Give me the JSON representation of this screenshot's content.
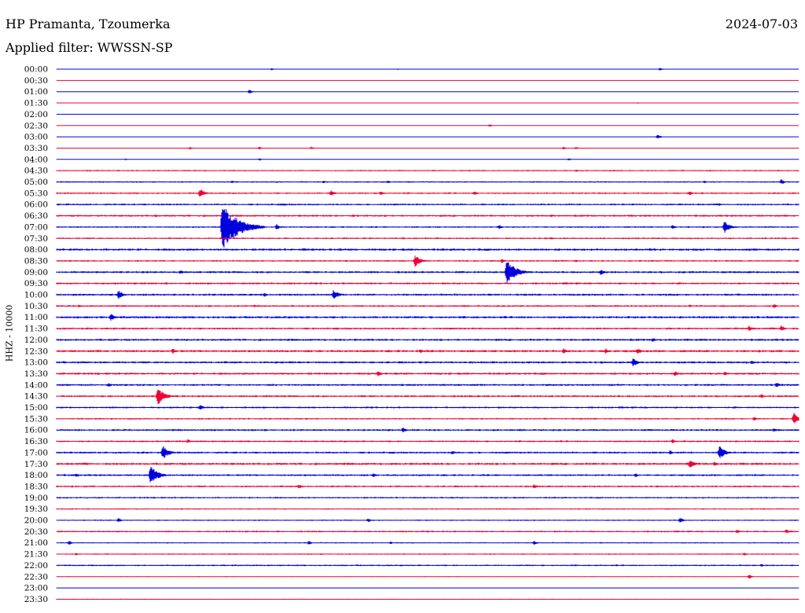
{
  "header": {
    "station": "HP Pramanta, Tzoumerka",
    "date": "2024-07-03",
    "filter": "Applied filter: WWSSN-SP"
  },
  "colors": {
    "odd_row": "#0000dd",
    "even_row": "#ee0033"
  },
  "chart_data": {
    "type": "line",
    "subtype": "helicorder",
    "ylabel": "HHZ - 10000",
    "row_interval_minutes": 30,
    "x_minutes_per_row": 30,
    "rows": [
      "00:00",
      "00:30",
      "01:00",
      "01:30",
      "02:00",
      "02:30",
      "03:00",
      "03:30",
      "04:00",
      "04:30",
      "05:00",
      "05:30",
      "06:00",
      "06:30",
      "07:00",
      "07:30",
      "08:00",
      "08:30",
      "09:00",
      "09:30",
      "10:00",
      "10:30",
      "11:00",
      "11:30",
      "12:00",
      "12:30",
      "13:00",
      "13:30",
      "14:00",
      "14:30",
      "15:00",
      "15:30",
      "16:00",
      "16:30",
      "17:00",
      "17:30",
      "18:00",
      "18:30",
      "19:00",
      "19:30",
      "20:00",
      "20:30",
      "21:00",
      "21:30",
      "22:00",
      "22:30",
      "23:00",
      "23:30"
    ],
    "noise_level": [
      0.2,
      0.1,
      0.2,
      0.1,
      0.1,
      0.1,
      0.2,
      0.4,
      0.4,
      0.9,
      0.9,
      1.0,
      1.1,
      1.2,
      1.0,
      1.0,
      1.4,
      1.0,
      1.3,
      1.2,
      1.3,
      1.1,
      1.4,
      1.2,
      1.3,
      1.4,
      1.3,
      1.3,
      1.2,
      1.2,
      1.1,
      1.0,
      1.2,
      1.1,
      1.2,
      1.4,
      1.2,
      1.1,
      1.0,
      0.8,
      0.8,
      1.0,
      0.8,
      0.8,
      1.0,
      0.6,
      0.4,
      0.6
    ],
    "events": [
      {
        "row": "00:00",
        "minute": 8.7,
        "amp": 1.5
      },
      {
        "row": "00:00",
        "minute": 13.8,
        "amp": 1
      },
      {
        "row": "00:00",
        "minute": 24.4,
        "amp": 2
      },
      {
        "row": "01:00",
        "minute": 7.8,
        "amp": 3
      },
      {
        "row": "01:30",
        "minute": 23.5,
        "amp": 1
      },
      {
        "row": "02:30",
        "minute": 17.5,
        "amp": 2
      },
      {
        "row": "03:00",
        "minute": 24.3,
        "amp": 3
      },
      {
        "row": "03:30",
        "minute": 5.4,
        "amp": 2
      },
      {
        "row": "03:30",
        "minute": 8.2,
        "amp": 2
      },
      {
        "row": "03:30",
        "minute": 10.3,
        "amp": 2
      },
      {
        "row": "03:30",
        "minute": 20.5,
        "amp": 2
      },
      {
        "row": "03:30",
        "minute": 21.0,
        "amp": 2
      },
      {
        "row": "04:00",
        "minute": 2.8,
        "amp": 1.5
      },
      {
        "row": "04:00",
        "minute": 8.2,
        "amp": 1.5
      },
      {
        "row": "04:00",
        "minute": 20.7,
        "amp": 2
      },
      {
        "row": "04:30",
        "minute": 21.0,
        "amp": 2
      },
      {
        "row": "05:00",
        "minute": 7.1,
        "amp": 2
      },
      {
        "row": "05:00",
        "minute": 10.8,
        "amp": 2
      },
      {
        "row": "05:00",
        "minute": 13.4,
        "amp": 2
      },
      {
        "row": "05:00",
        "minute": 26.2,
        "amp": 2
      },
      {
        "row": "05:00",
        "minute": 29.3,
        "amp": 4
      },
      {
        "row": "05:30",
        "minute": 5.8,
        "amp": 6
      },
      {
        "row": "05:30",
        "minute": 11.1,
        "amp": 4
      },
      {
        "row": "05:30",
        "minute": 13.1,
        "amp": 3
      },
      {
        "row": "05:30",
        "minute": 16.9,
        "amp": 3
      },
      {
        "row": "05:30",
        "minute": 25.6,
        "amp": 3
      },
      {
        "row": "06:00",
        "minute": 9.2,
        "amp": 2
      },
      {
        "row": "06:00",
        "minute": 26.8,
        "amp": 2
      },
      {
        "row": "06:30",
        "minute": 4.0,
        "amp": 2
      },
      {
        "row": "06:30",
        "minute": 12.0,
        "amp": 2
      },
      {
        "row": "06:30",
        "minute": 20.0,
        "amp": 2
      },
      {
        "row": "07:00",
        "minute": 6.7,
        "amp": 30
      },
      {
        "row": "07:00",
        "minute": 8.9,
        "amp": 4
      },
      {
        "row": "07:00",
        "minute": 17.9,
        "amp": 3
      },
      {
        "row": "07:00",
        "minute": 24.9,
        "amp": 3
      },
      {
        "row": "07:00",
        "minute": 27.0,
        "amp": 8
      },
      {
        "row": "07:30",
        "minute": 14.0,
        "amp": 2
      },
      {
        "row": "07:30",
        "minute": 20.0,
        "amp": 2
      },
      {
        "row": "08:00",
        "minute": 10.0,
        "amp": 2
      },
      {
        "row": "08:00",
        "minute": 24.0,
        "amp": 2
      },
      {
        "row": "08:30",
        "minute": 14.5,
        "amp": 8
      },
      {
        "row": "08:30",
        "minute": 18.0,
        "amp": 3
      },
      {
        "row": "08:30",
        "minute": 21.0,
        "amp": 2
      },
      {
        "row": "09:00",
        "minute": 18.2,
        "amp": 16
      },
      {
        "row": "09:00",
        "minute": 5.0,
        "amp": 3
      },
      {
        "row": "09:00",
        "minute": 22.0,
        "amp": 4
      },
      {
        "row": "10:00",
        "minute": 2.5,
        "amp": 6
      },
      {
        "row": "10:00",
        "minute": 8.4,
        "amp": 3
      },
      {
        "row": "10:00",
        "minute": 11.2,
        "amp": 7
      },
      {
        "row": "10:30",
        "minute": 0.9,
        "amp": 2
      },
      {
        "row": "10:30",
        "minute": 8.0,
        "amp": 2
      },
      {
        "row": "10:30",
        "minute": 25.6,
        "amp": 2
      },
      {
        "row": "10:30",
        "minute": 29.0,
        "amp": 3
      },
      {
        "row": "11:00",
        "minute": 2.2,
        "amp": 5
      },
      {
        "row": "11:30",
        "minute": 28.0,
        "amp": 4
      },
      {
        "row": "11:30",
        "minute": 29.3,
        "amp": 4
      },
      {
        "row": "12:00",
        "minute": 24.1,
        "amp": 3
      },
      {
        "row": "12:30",
        "minute": 4.7,
        "amp": 4
      },
      {
        "row": "12:30",
        "minute": 14.7,
        "amp": 3
      },
      {
        "row": "12:30",
        "minute": 20.5,
        "amp": 4
      },
      {
        "row": "12:30",
        "minute": 22.2,
        "amp": 4
      },
      {
        "row": "12:30",
        "minute": 23.5,
        "amp": 4
      },
      {
        "row": "13:00",
        "minute": 0.3,
        "amp": 2
      },
      {
        "row": "13:00",
        "minute": 23.3,
        "amp": 6
      },
      {
        "row": "13:00",
        "minute": 28.1,
        "amp": 3
      },
      {
        "row": "13:30",
        "minute": 13.0,
        "amp": 4
      },
      {
        "row": "13:30",
        "minute": 25.0,
        "amp": 4
      },
      {
        "row": "13:30",
        "minute": 27.0,
        "amp": 3
      },
      {
        "row": "14:00",
        "minute": 2.1,
        "amp": 3
      },
      {
        "row": "14:00",
        "minute": 29.1,
        "amp": 4
      },
      {
        "row": "14:30",
        "minute": 4.1,
        "amp": 11
      },
      {
        "row": "14:30",
        "minute": 28.5,
        "amp": 3
      },
      {
        "row": "15:00",
        "minute": 5.8,
        "amp": 4
      },
      {
        "row": "15:30",
        "minute": 28.2,
        "amp": 3
      },
      {
        "row": "15:30",
        "minute": 29.8,
        "amp": 8
      },
      {
        "row": "16:00",
        "minute": 14.0,
        "amp": 4
      },
      {
        "row": "16:00",
        "minute": 29.0,
        "amp": 3
      },
      {
        "row": "16:30",
        "minute": 5.3,
        "amp": 3
      },
      {
        "row": "16:30",
        "minute": 24.9,
        "amp": 3
      },
      {
        "row": "17:00",
        "minute": 4.3,
        "amp": 9
      },
      {
        "row": "17:00",
        "minute": 26.8,
        "amp": 9
      },
      {
        "row": "17:00",
        "minute": 16.0,
        "amp": 3
      },
      {
        "row": "17:00",
        "minute": 24.8,
        "amp": 3
      },
      {
        "row": "17:30",
        "minute": 25.6,
        "amp": 6
      },
      {
        "row": "17:30",
        "minute": 26.6,
        "amp": 3
      },
      {
        "row": "18:00",
        "minute": 3.8,
        "amp": 12
      },
      {
        "row": "18:00",
        "minute": 0.8,
        "amp": 3
      },
      {
        "row": "18:00",
        "minute": 12.8,
        "amp": 3
      },
      {
        "row": "18:00",
        "minute": 23.4,
        "amp": 3
      },
      {
        "row": "18:30",
        "minute": 9.8,
        "amp": 3
      },
      {
        "row": "18:30",
        "minute": 19.3,
        "amp": 3
      },
      {
        "row": "20:00",
        "minute": 2.5,
        "amp": 3
      },
      {
        "row": "20:00",
        "minute": 12.6,
        "amp": 3
      },
      {
        "row": "20:00",
        "minute": 25.2,
        "amp": 4
      },
      {
        "row": "20:30",
        "minute": 27.5,
        "amp": 3
      },
      {
        "row": "20:30",
        "minute": 29.5,
        "amp": 3
      },
      {
        "row": "21:00",
        "minute": 0.5,
        "amp": 3
      },
      {
        "row": "21:00",
        "minute": 10.2,
        "amp": 3
      },
      {
        "row": "21:00",
        "minute": 13.5,
        "amp": 2
      },
      {
        "row": "21:00",
        "minute": 19.3,
        "amp": 3
      },
      {
        "row": "21:30",
        "minute": 0.8,
        "amp": 2
      },
      {
        "row": "21:30",
        "minute": 27.8,
        "amp": 2
      },
      {
        "row": "22:00",
        "minute": 28.5,
        "amp": 2
      },
      {
        "row": "22:30",
        "minute": 28.0,
        "amp": 3
      }
    ]
  }
}
